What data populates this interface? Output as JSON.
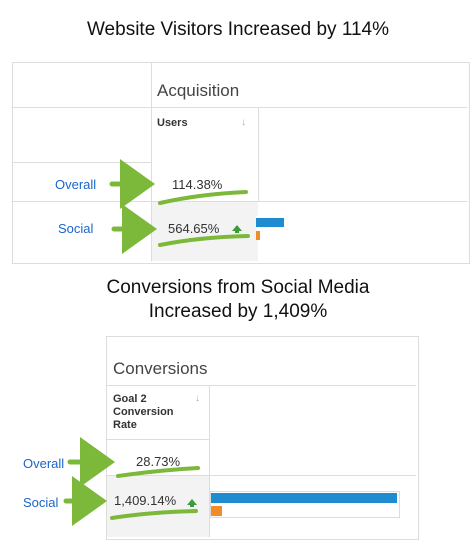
{
  "headline_visitors": "Website Visitors Increased by 114%",
  "headline_conversions_line1": "Conversions from Social Media",
  "headline_conversions_line2": "Increased by 1,409%",
  "acquisition": {
    "section_title": "Acquisition",
    "column_header": "Users",
    "rows": [
      {
        "label": "Overall",
        "value": "114.38%"
      },
      {
        "label": "Social",
        "value": "564.65%"
      }
    ],
    "social_bar_fraction": 0.55
  },
  "conversions": {
    "section_title": "Conversions",
    "column_header_lines": [
      "Goal 2",
      "Conversion",
      "Rate"
    ],
    "rows": [
      {
        "label": "Overall",
        "value": "28.73%"
      },
      {
        "label": "Social",
        "value": "1,409.14%"
      }
    ],
    "social_bar_fraction": 1.0
  },
  "colors": {
    "arrow_green": "#7cb83a",
    "bar_blue": "#1f8cd0",
    "bar_orange": "#f28c28",
    "link_blue": "#1a66c9"
  }
}
